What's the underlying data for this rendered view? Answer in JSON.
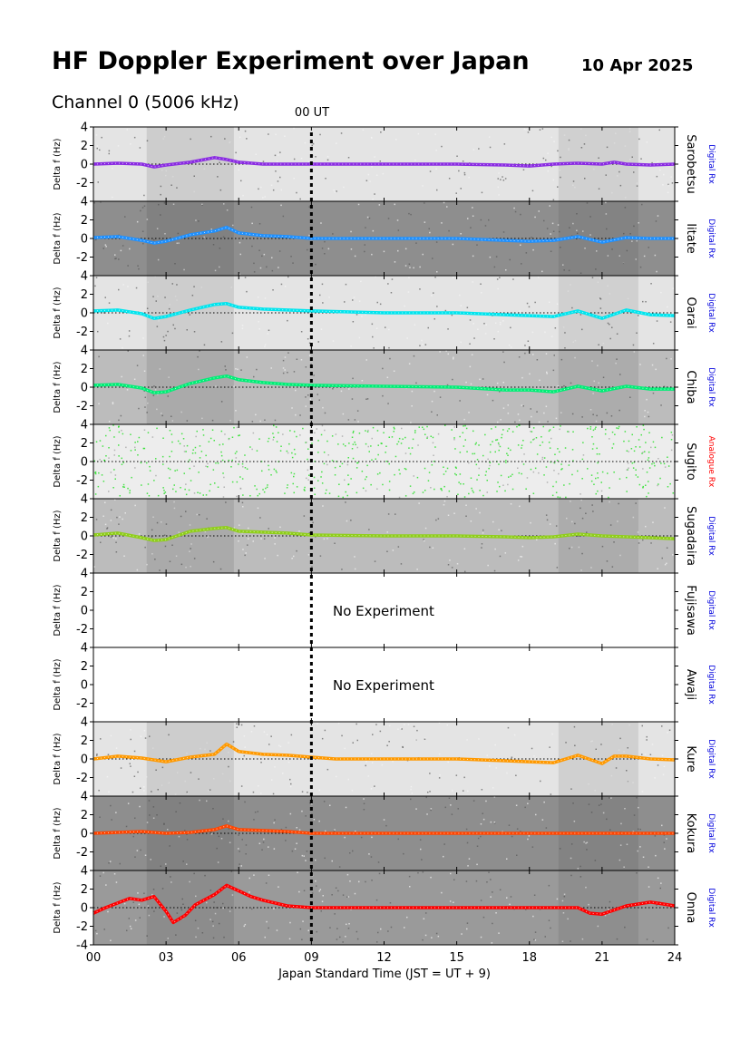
{
  "header": {
    "title": "HF Doppler Experiment over Japan",
    "date": "10 Apr 2025",
    "channel": "Channel 0 (5006 kHz)",
    "ut_marker": "00 UT"
  },
  "chart_data": {
    "type": "line",
    "title": "HF Doppler Experiment over Japan",
    "subtitle": "Channel 0 (5006 kHz)",
    "xlabel": "Japan Standard Time (JST = UT + 9)",
    "ylabel": "Delta f (Hz)",
    "xlim": [
      0,
      24
    ],
    "ylim": [
      -4,
      4
    ],
    "x_ticks": [
      "00",
      "03",
      "06",
      "09",
      "12",
      "15",
      "18",
      "21",
      "24"
    ],
    "x_tick_values": [
      0,
      3,
      6,
      9,
      12,
      15,
      18,
      21,
      24
    ],
    "y_ticks": [
      -4,
      -2,
      0,
      2,
      4
    ],
    "ut_marker_x": 9,
    "ut_marker_label": "00 UT",
    "panels": [
      {
        "station": "Sarobetsu",
        "receiver": "Digital Rx",
        "receiver_color": "#0000dd",
        "color": "#8a2be2",
        "background": "light",
        "status": "",
        "x": [
          0,
          1,
          2,
          2.5,
          3,
          4,
          5,
          5.5,
          6,
          7,
          8,
          9,
          12,
          15,
          17,
          18,
          19,
          20,
          21,
          21.5,
          22,
          23,
          24
        ],
        "values": [
          0,
          0.1,
          0,
          -0.3,
          -0.1,
          0.2,
          0.7,
          0.5,
          0.2,
          0,
          0,
          0,
          0,
          0,
          -0.1,
          -0.2,
          0,
          0.1,
          0,
          0.2,
          0,
          -0.1,
          0
        ]
      },
      {
        "station": "Iitate",
        "receiver": "Digital Rx",
        "receiver_color": "#0000dd",
        "color": "#1e90ff",
        "background": "dark",
        "status": "",
        "x": [
          0,
          1,
          2,
          2.5,
          3,
          4,
          5,
          5.5,
          6,
          7,
          8,
          9,
          12,
          15,
          17,
          18,
          19,
          20,
          21,
          22,
          23,
          24
        ],
        "values": [
          0.1,
          0.2,
          -0.2,
          -0.5,
          -0.3,
          0.4,
          0.8,
          1.2,
          0.6,
          0.3,
          0.2,
          0,
          0,
          0,
          -0.2,
          -0.3,
          -0.2,
          0.2,
          -0.4,
          0.1,
          0,
          0
        ]
      },
      {
        "station": "Oarai",
        "receiver": "Digital Rx",
        "receiver_color": "#0000dd",
        "color": "#00e5ee",
        "background": "light",
        "status": "",
        "x": [
          0,
          1,
          2,
          2.5,
          3,
          4,
          5,
          5.5,
          6,
          7,
          8,
          9,
          12,
          15,
          17,
          18,
          19,
          20,
          21,
          22,
          23,
          24
        ],
        "values": [
          0.2,
          0.3,
          -0.1,
          -0.6,
          -0.4,
          0.3,
          0.9,
          1.0,
          0.6,
          0.4,
          0.3,
          0.2,
          0,
          0,
          -0.2,
          -0.3,
          -0.4,
          0.2,
          -0.6,
          0.3,
          -0.2,
          -0.3
        ]
      },
      {
        "station": "Chiba",
        "receiver": "Digital Rx",
        "receiver_color": "#0000dd",
        "color": "#00ee76",
        "background": "medium",
        "status": "",
        "x": [
          0,
          1,
          2,
          2.5,
          3,
          4,
          5,
          5.5,
          6,
          7,
          8,
          9,
          12,
          15,
          17,
          18,
          19,
          20,
          21,
          22,
          23,
          24
        ],
        "values": [
          0.2,
          0.3,
          -0.1,
          -0.6,
          -0.5,
          0.4,
          1.0,
          1.2,
          0.8,
          0.5,
          0.3,
          0.2,
          0.1,
          0,
          -0.3,
          -0.3,
          -0.5,
          0.1,
          -0.4,
          0.1,
          -0.2,
          -0.2
        ]
      },
      {
        "station": "Sugito",
        "receiver": "Analogue Rx",
        "receiver_color": "#ff0000",
        "color": "#00dd00",
        "background": "noise",
        "status": "",
        "x": [
          0,
          24
        ],
        "values": [
          0,
          0
        ]
      },
      {
        "station": "Sugadaira",
        "receiver": "Digital Rx",
        "receiver_color": "#0000dd",
        "color": "#8fce1a",
        "background": "medium",
        "status": "",
        "x": [
          0,
          1,
          2,
          2.5,
          3,
          4,
          5,
          5.5,
          6,
          7,
          8,
          9,
          12,
          15,
          17,
          18,
          19,
          20,
          21,
          22,
          23,
          24
        ],
        "values": [
          0.1,
          0.3,
          -0.2,
          -0.5,
          -0.4,
          0.5,
          0.8,
          0.9,
          0.5,
          0.4,
          0.3,
          0.1,
          0,
          0,
          -0.1,
          -0.2,
          -0.1,
          0.2,
          0,
          -0.1,
          -0.2,
          -0.3
        ]
      },
      {
        "station": "Fujisawa",
        "receiver": "Digital Rx",
        "receiver_color": "#0000dd",
        "color": "#000000",
        "background": "none",
        "status": "No Experiment",
        "x": [],
        "values": []
      },
      {
        "station": "Awaji",
        "receiver": "Digital Rx",
        "receiver_color": "#0000dd",
        "color": "#000000",
        "background": "none",
        "status": "No Experiment",
        "x": [],
        "values": []
      },
      {
        "station": "Kure",
        "receiver": "Digital Rx",
        "receiver_color": "#0000dd",
        "color": "#ff9900",
        "background": "light",
        "status": "",
        "x": [
          0,
          1,
          2,
          3,
          4,
          5,
          5.5,
          6,
          7,
          8,
          9,
          10,
          12,
          15,
          17,
          18,
          19,
          20,
          21,
          21.5,
          22,
          23,
          24
        ],
        "values": [
          0,
          0.3,
          0.1,
          -0.3,
          0.2,
          0.5,
          1.6,
          0.8,
          0.5,
          0.4,
          0.2,
          0,
          0,
          0,
          -0.2,
          -0.3,
          -0.4,
          0.4,
          -0.5,
          0.3,
          0.3,
          0,
          -0.1
        ]
      },
      {
        "station": "Kokura",
        "receiver": "Digital Rx",
        "receiver_color": "#0000dd",
        "color": "#ff4500",
        "background": "dark",
        "status": "",
        "x": [
          0,
          1,
          2,
          3,
          4,
          5,
          5.5,
          6,
          7,
          8,
          9,
          10,
          12,
          15,
          17,
          18,
          19,
          20,
          21,
          22,
          23,
          24
        ],
        "values": [
          0,
          0.1,
          0.2,
          0,
          0.1,
          0.4,
          0.8,
          0.4,
          0.3,
          0.2,
          0,
          0,
          0,
          0,
          0,
          0,
          0,
          0,
          0,
          0,
          0,
          0
        ]
      },
      {
        "station": "Onna",
        "receiver": "Digital Rx",
        "receiver_color": "#0000dd",
        "color": "#ff0000",
        "background": "darkest",
        "status": "",
        "x": [
          0,
          0.5,
          1,
          1.5,
          2,
          2.5,
          3,
          3.3,
          3.8,
          4.2,
          5,
          5.5,
          6,
          6.5,
          7,
          8,
          9,
          12,
          15,
          17,
          18,
          19,
          20,
          20.5,
          21,
          22,
          23,
          23.5,
          24
        ],
        "values": [
          -0.6,
          0,
          0.5,
          1.0,
          0.8,
          1.2,
          -0.4,
          -1.6,
          -0.8,
          0.3,
          1.4,
          2.4,
          1.8,
          1.2,
          0.8,
          0.2,
          0,
          0,
          0,
          0,
          0,
          0,
          0,
          -0.6,
          -0.7,
          0.2,
          0.6,
          0.4,
          0.2
        ]
      }
    ]
  }
}
